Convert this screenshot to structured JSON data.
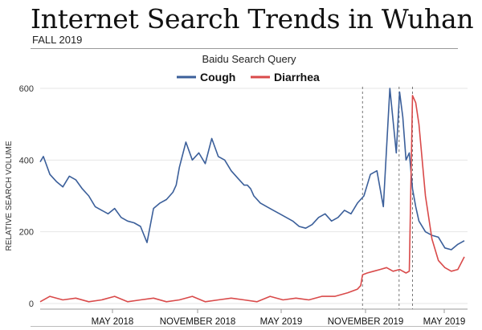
{
  "title": "Internet Search Trends in Wuhan",
  "subtitle": "FALL 2019",
  "chart_data": {
    "type": "line",
    "legend_title": "Baidu Search Query",
    "legend_position": "top-center",
    "ylabel": "RELATIVE SEARCH VOLUME",
    "xlabel": "",
    "ylim": [
      0,
      600
    ],
    "yticks": [
      0,
      200,
      400,
      600
    ],
    "xlim": [
      "2017-11-19",
      "2020-05-31"
    ],
    "xtick_labels": [
      "MAY 2018",
      "NOVEMBER 2018",
      "MAY 2019",
      "NOVEMBER 2019",
      "MAY 2019"
    ],
    "grid": true,
    "reference_lines": [
      "2019-10-17",
      "2020-01-04",
      "2020-02-02"
    ],
    "colors": {
      "Cough": "#3b5f9a",
      "Diarrhea": "#d94a4a"
    },
    "series": [
      {
        "name": "Cough",
        "x": [
          "2017-11-19",
          "2017-11-26",
          "2017-12-10",
          "2017-12-24",
          "2018-01-07",
          "2018-01-21",
          "2018-02-04",
          "2018-02-18",
          "2018-03-04",
          "2018-03-18",
          "2018-04-01",
          "2018-04-15",
          "2018-04-29",
          "2018-05-13",
          "2018-05-27",
          "2018-06-10",
          "2018-06-24",
          "2018-07-08",
          "2018-07-22",
          "2018-08-05",
          "2018-08-19",
          "2018-09-02",
          "2018-09-09",
          "2018-09-16",
          "2018-09-30",
          "2018-10-14",
          "2018-10-28",
          "2018-11-11",
          "2018-11-25",
          "2018-12-09",
          "2018-12-23",
          "2019-01-06",
          "2019-01-20",
          "2019-02-03",
          "2019-02-10",
          "2019-02-17",
          "2019-02-24",
          "2019-03-10",
          "2019-03-24",
          "2019-04-07",
          "2019-04-21",
          "2019-05-05",
          "2019-05-19",
          "2019-06-02",
          "2019-06-16",
          "2019-06-30",
          "2019-07-14",
          "2019-07-28",
          "2019-08-11",
          "2019-08-25",
          "2019-09-08",
          "2019-09-22",
          "2019-10-06",
          "2019-10-20",
          "2019-11-03",
          "2019-11-17",
          "2019-12-01",
          "2019-12-15",
          "2019-12-29",
          "2020-01-05",
          "2020-01-12",
          "2020-01-19",
          "2020-01-26",
          "2020-02-02",
          "2020-02-09",
          "2020-02-16",
          "2020-03-01",
          "2020-03-15",
          "2020-03-29",
          "2020-04-12",
          "2020-04-26",
          "2020-05-10",
          "2020-05-24"
        ],
        "values": [
          395,
          410,
          360,
          340,
          325,
          355,
          345,
          320,
          300,
          270,
          260,
          250,
          265,
          240,
          230,
          225,
          215,
          170,
          265,
          280,
          290,
          310,
          330,
          380,
          450,
          400,
          420,
          390,
          460,
          410,
          400,
          370,
          350,
          330,
          330,
          320,
          300,
          280,
          270,
          260,
          250,
          240,
          230,
          215,
          210,
          220,
          240,
          250,
          230,
          240,
          260,
          250,
          280,
          300,
          360,
          370,
          270,
          600,
          420,
          590,
          520,
          400,
          420,
          320,
          270,
          230,
          200,
          190,
          185,
          155,
          150,
          165,
          175
        ]
      },
      {
        "name": "Diarrhea",
        "x": [
          "2017-11-19",
          "2017-12-10",
          "2018-01-07",
          "2018-02-04",
          "2018-03-04",
          "2018-04-01",
          "2018-04-29",
          "2018-05-27",
          "2018-06-24",
          "2018-07-22",
          "2018-08-19",
          "2018-09-16",
          "2018-10-14",
          "2018-11-11",
          "2018-12-09",
          "2019-01-06",
          "2019-02-03",
          "2019-03-03",
          "2019-03-31",
          "2019-04-28",
          "2019-05-26",
          "2019-06-23",
          "2019-07-21",
          "2019-08-18",
          "2019-09-15",
          "2019-10-06",
          "2019-10-13",
          "2019-10-17",
          "2019-10-27",
          "2019-11-10",
          "2019-11-24",
          "2019-12-08",
          "2019-12-22",
          "2020-01-05",
          "2020-01-12",
          "2020-01-19",
          "2020-01-26",
          "2020-02-02",
          "2020-02-09",
          "2020-02-16",
          "2020-03-01",
          "2020-03-15",
          "2020-03-29",
          "2020-04-12",
          "2020-04-26",
          "2020-05-10",
          "2020-05-24"
        ],
        "values": [
          5,
          20,
          10,
          15,
          5,
          10,
          20,
          5,
          10,
          15,
          5,
          10,
          20,
          5,
          10,
          15,
          10,
          5,
          20,
          10,
          15,
          10,
          20,
          20,
          30,
          40,
          50,
          80,
          85,
          90,
          95,
          100,
          90,
          95,
          90,
          85,
          90,
          580,
          560,
          500,
          300,
          180,
          120,
          100,
          90,
          95,
          130
        ]
      }
    ]
  }
}
